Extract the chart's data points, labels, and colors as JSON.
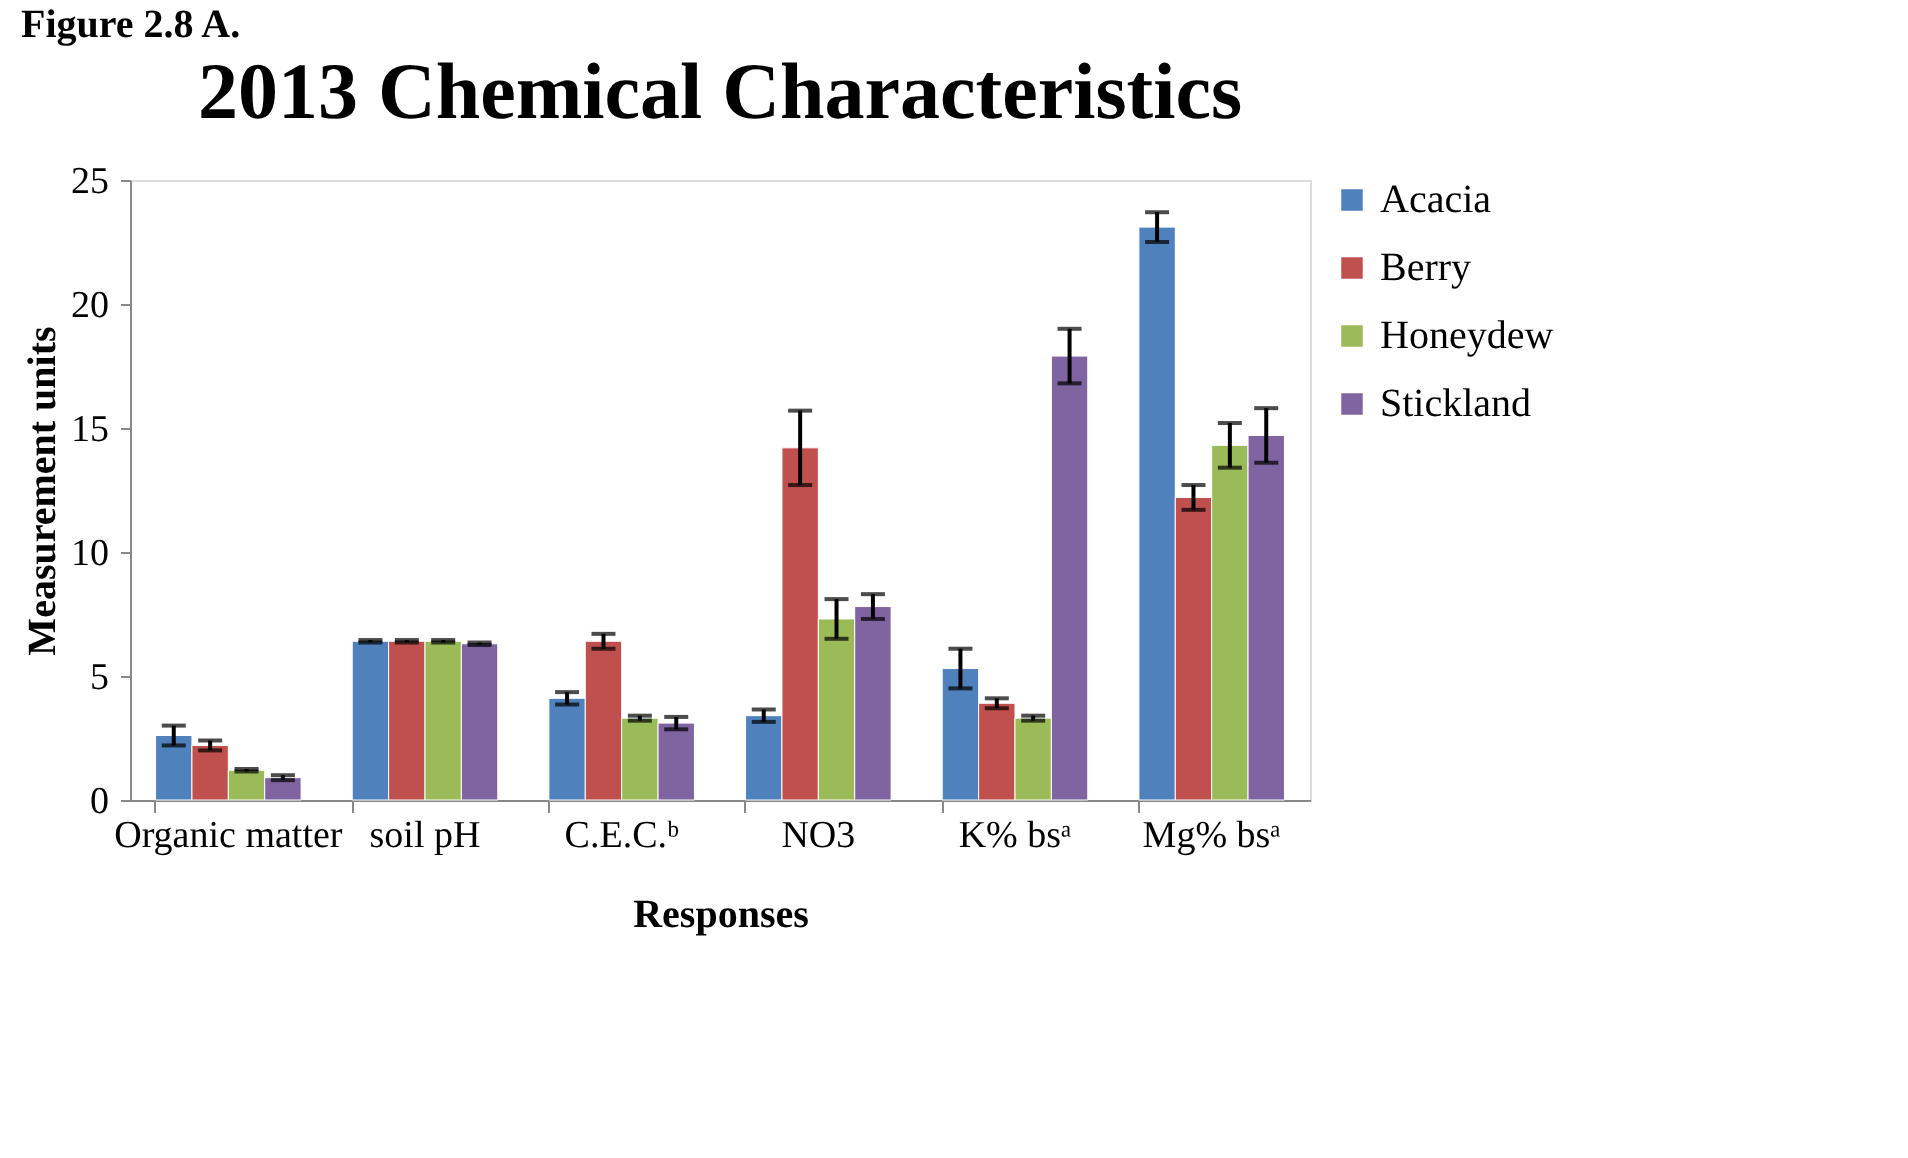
{
  "chart_data": {
    "type": "bar",
    "title": "2013 Chemical Characteristics",
    "xlabel": "Responses",
    "ylabel": "Measurement units",
    "annotations": [
      "Figure 2.8 A."
    ],
    "categories": [
      "Organic matter",
      "soil pH",
      "C.E.C.ᵇ",
      "NO3",
      "K% bsᵃ",
      "Mg% bsᵃ"
    ],
    "series": [
      {
        "name": "Acacia",
        "color": "#4f81bd",
        "values": [
          2.6,
          6.4,
          4.1,
          3.4,
          5.3,
          23.1
        ],
        "errors": [
          0.4,
          0.05,
          0.25,
          0.25,
          0.8,
          0.6
        ]
      },
      {
        "name": "Berry",
        "color": "#c0504d",
        "values": [
          2.2,
          6.4,
          6.4,
          14.2,
          3.9,
          12.2
        ],
        "errors": [
          0.2,
          0.05,
          0.3,
          1.5,
          0.2,
          0.5
        ]
      },
      {
        "name": "Honeydew",
        "color": "#9bbb59",
        "values": [
          1.2,
          6.4,
          3.3,
          7.3,
          3.3,
          14.3
        ],
        "errors": [
          0.05,
          0.05,
          0.1,
          0.8,
          0.1,
          0.9
        ]
      },
      {
        "name": "Stickland",
        "color": "#8064a2",
        "values": [
          0.9,
          6.3,
          3.1,
          7.8,
          17.9,
          14.7
        ],
        "errors": [
          0.1,
          0.05,
          0.25,
          0.5,
          1.1,
          1.1
        ]
      }
    ],
    "ylim": [
      0,
      25
    ],
    "yticks": [
      0,
      5,
      10,
      15,
      20,
      25
    ],
    "grid": false,
    "legend": "right"
  }
}
